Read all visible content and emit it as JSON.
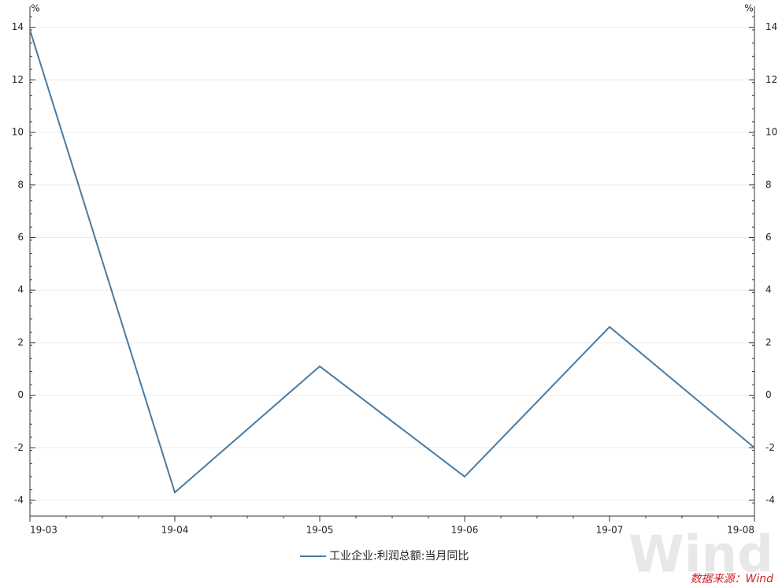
{
  "chart_data": {
    "type": "line",
    "categories": [
      "19-03",
      "19-04",
      "19-05",
      "19-06",
      "19-07",
      "19-08"
    ],
    "series": [
      {
        "name": "工业企业:利润总额:当月同比",
        "color": "#4a7aa0",
        "values": [
          13.9,
          -3.7,
          1.1,
          -3.1,
          2.6,
          -2.0
        ]
      }
    ],
    "ylim": [
      -4.6,
      14.8
    ],
    "yticks": [
      -4,
      -2,
      0,
      2,
      4,
      6,
      8,
      10,
      12,
      14
    ],
    "y2lim": [
      -4.6,
      14.8
    ],
    "y2ticks": [
      -4,
      -2,
      0,
      2,
      4,
      6,
      8,
      10,
      12,
      14
    ],
    "y_unit": "%",
    "y2_unit": "%",
    "grid": true,
    "source": "数据来源：Wind",
    "watermark": "Wind"
  }
}
